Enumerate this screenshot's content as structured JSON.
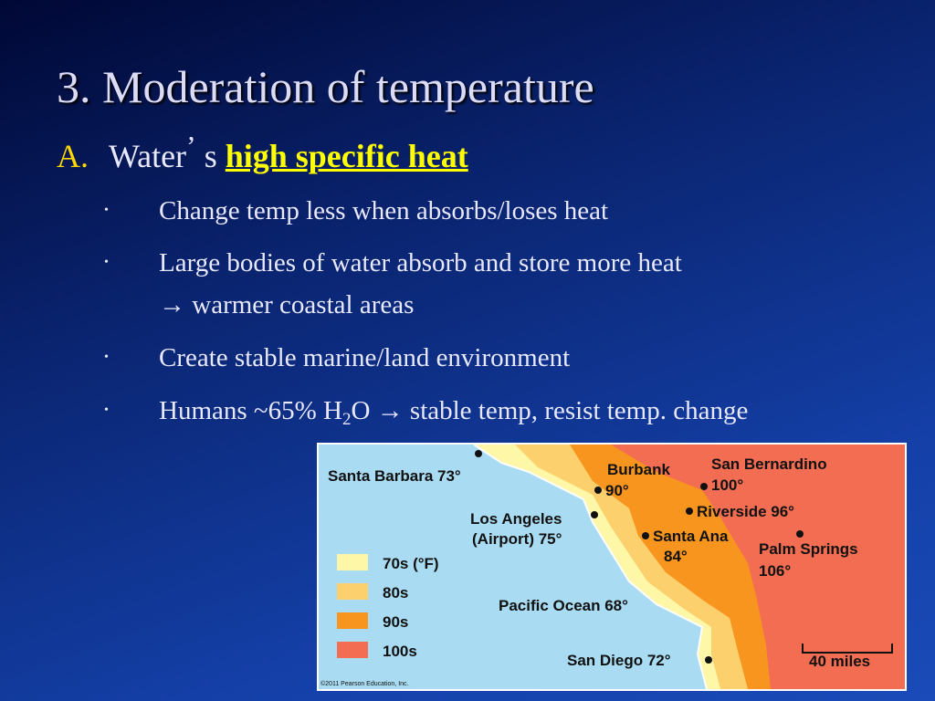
{
  "title": "3. Moderation of temperature",
  "subtitle": {
    "marker": "A.",
    "text": "Water",
    "apostrophe": "’",
    "suffix": "s",
    "highlight": "high specific heat"
  },
  "bullets": [
    {
      "lines": [
        "Change temp less when absorbs/loses heat"
      ]
    },
    {
      "lines": [
        "Large bodies of water absorb and store more heat",
        "→ warmer coastal areas"
      ]
    },
    {
      "lines": [
        "Create stable marine/land environment"
      ]
    },
    {
      "parts": [
        "Humans ~65% H",
        "2",
        "O",
        "→ stable temp, resist temp. change"
      ]
    }
  ],
  "map": {
    "labels": [
      "Santa Barbara 73°",
      "Los Angeles",
      "(Airport) 75°",
      "Burbank",
      "90°",
      "San Bernardino",
      "100°",
      "Riverside 96°",
      "Santa Ana",
      "84°",
      "Palm Springs",
      "106°",
      "Pacific Ocean 68°",
      "San Diego 72°"
    ],
    "legend": [
      "70s (°F)",
      "80s",
      "90s",
      "100s"
    ],
    "scale": "40 miles",
    "credit": "©2011 Pearson Education, Inc."
  }
}
